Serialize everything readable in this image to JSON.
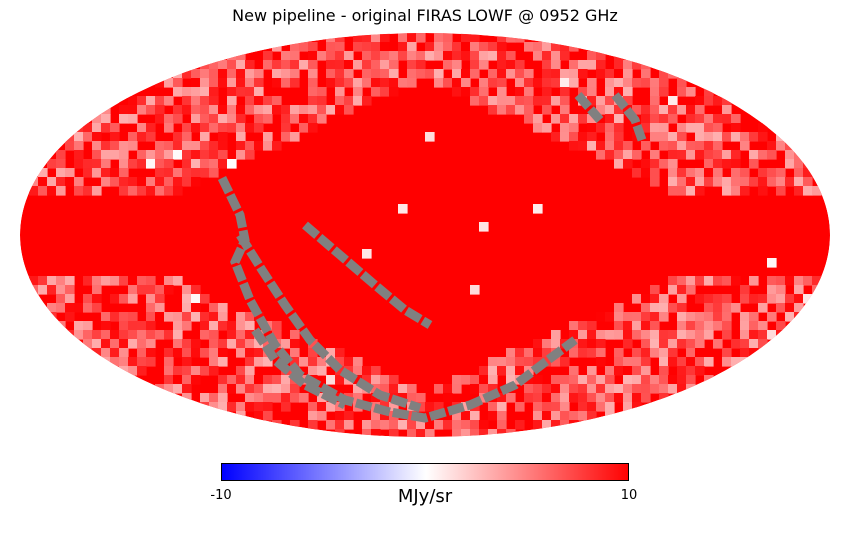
{
  "chart_data": {
    "type": "heatmap",
    "projection": "mollweide",
    "title": "New pipeline - original FIRAS LOWF @ 0952 GHz",
    "colorbar": {
      "min": -10,
      "max": 10,
      "min_label": "-10",
      "max_label": "10",
      "unit": "MJy/sr",
      "colormap": "bwr",
      "colors": {
        "low": "#0000ff",
        "mid": "#ffffff",
        "high": "#ff0000"
      },
      "placement": "bottom"
    },
    "mask_color": "#808080",
    "description_of_values": "Most pixels saturate at the maximum (10); high latitudes vary roughly 3-10; a few pixels near 0; masked ecliptic-like stripes shown in gray"
  }
}
